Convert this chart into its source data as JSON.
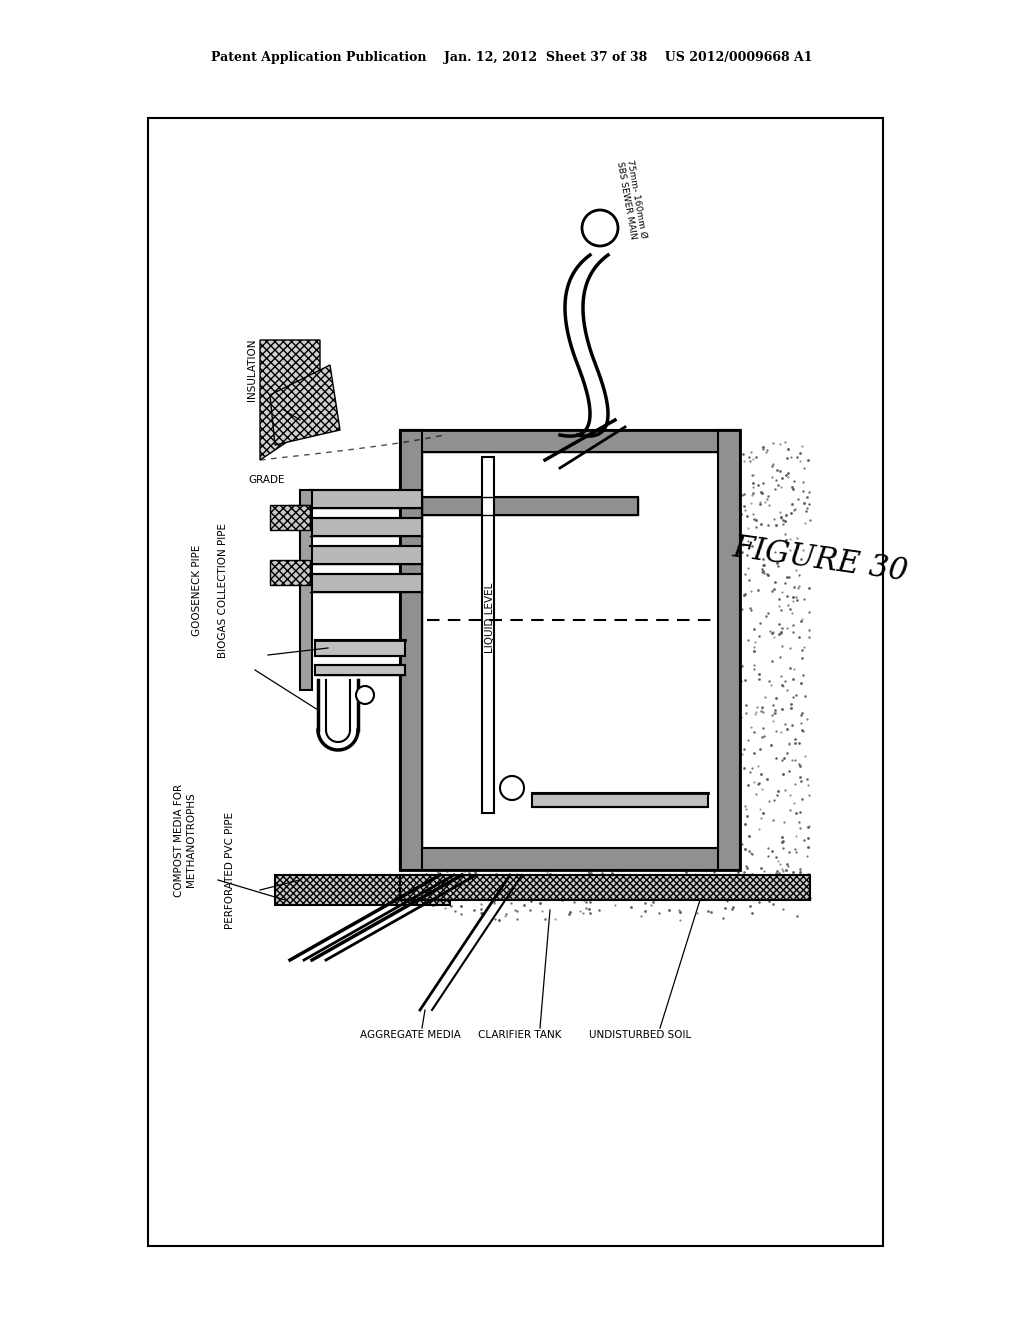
{
  "bg_color": "#ffffff",
  "header_text": "Patent Application Publication    Jan. 12, 2012  Sheet 37 of 38    US 2012/0009668 A1",
  "figure_label": "FIGURE 30",
  "labels": {
    "insulation": "INSULATION",
    "grade": "GRADE",
    "gooseneck": "GOOSENECK PIPE",
    "biogas_collection": "BIOGAS COLLECTION PIPE",
    "compost_media": "COMPOST MEDIA FOR\nMETHANOTROPHS",
    "perforated_pvc": "PERFORATED PVC PIPE",
    "aggregate_media": "AGGREGATE MEDIA",
    "clarifier_tank": "CLARIFIER TANK",
    "undisturbed_soil": "UNDISTURBED SOIL",
    "liquid_level": "LIQUID LEVEL",
    "sewer_main": "75mm- 160mm Ø\nSBS SEWER MAIN"
  },
  "concrete_gray": "#909090",
  "hatch_gray": "#b0b0b0",
  "soil_dot_color": "#555555"
}
